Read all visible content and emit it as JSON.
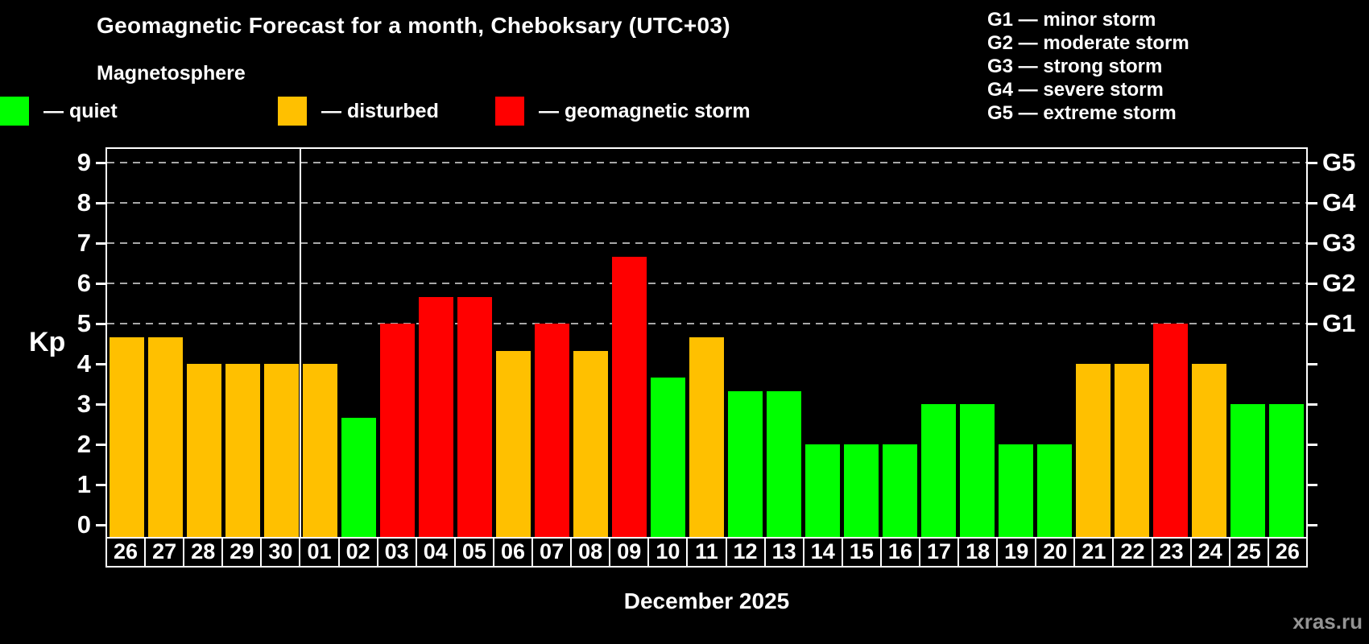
{
  "header": {
    "title": "Geomagnetic Forecast for a month, Cheboksary (UTC+03)",
    "subtitle": "Magnetosphere"
  },
  "legend": {
    "items": [
      {
        "name": "quiet",
        "label": "— quiet",
        "color": "#00ff00"
      },
      {
        "name": "disturbed",
        "label": "— disturbed",
        "color": "#ffc000"
      },
      {
        "name": "storm",
        "label": "— geomagnetic storm",
        "color": "#ff0000"
      }
    ]
  },
  "g_scale": {
    "lines": [
      "G1 — minor storm",
      "G2 — moderate storm",
      "G3 — strong storm",
      "G4 — severe storm",
      "G5 — extreme storm"
    ]
  },
  "axis": {
    "ylabel": "Kp",
    "xlabel": "December 2025",
    "y_ticks": [
      0,
      1,
      2,
      3,
      4,
      5,
      6,
      7,
      8,
      9
    ],
    "right_labels": [
      {
        "label": "G1",
        "kp": 5
      },
      {
        "label": "G2",
        "kp": 6
      },
      {
        "label": "G3",
        "kp": 7
      },
      {
        "label": "G4",
        "kp": 8
      },
      {
        "label": "G5",
        "kp": 9
      }
    ]
  },
  "watermark": "xras.ru",
  "chart_data": {
    "type": "bar",
    "title": "Geomagnetic Forecast for a month, Cheboksary (UTC+03)",
    "subtitle": "Magnetosphere",
    "xlabel": "December 2025",
    "ylabel": "Kp",
    "ylim": [
      -0.3,
      9.35
    ],
    "grid": "dashed horizontal lines at Kp 5-9 only",
    "legend_position": "top-left",
    "categories": [
      "26",
      "27",
      "28",
      "29",
      "30",
      "01",
      "02",
      "03",
      "04",
      "05",
      "06",
      "07",
      "08",
      "09",
      "10",
      "11",
      "12",
      "13",
      "14",
      "15",
      "16",
      "17",
      "18",
      "19",
      "20",
      "21",
      "22",
      "23",
      "24",
      "25",
      "26"
    ],
    "values": [
      4.67,
      4.67,
      4,
      4,
      4,
      4,
      2.67,
      5,
      5.67,
      5.67,
      4.33,
      5,
      4.33,
      6.67,
      3.67,
      4.67,
      3.33,
      3.33,
      2,
      2,
      2,
      3,
      3,
      2,
      2,
      4,
      4,
      5,
      4,
      3,
      3
    ],
    "states": [
      "disturbed",
      "disturbed",
      "disturbed",
      "disturbed",
      "disturbed",
      "disturbed",
      "quiet",
      "storm",
      "storm",
      "storm",
      "disturbed",
      "storm",
      "disturbed",
      "storm",
      "quiet",
      "disturbed",
      "quiet",
      "quiet",
      "quiet",
      "quiet",
      "quiet",
      "quiet",
      "quiet",
      "quiet",
      "quiet",
      "disturbed",
      "disturbed",
      "storm",
      "disturbed",
      "quiet",
      "quiet"
    ],
    "colors": {
      "quiet": "#00ff00",
      "disturbed": "#ffc000",
      "storm": "#ff0000"
    },
    "month_separator_index": 5,
    "gridline_kps": [
      5,
      6,
      7,
      8,
      9
    ]
  }
}
